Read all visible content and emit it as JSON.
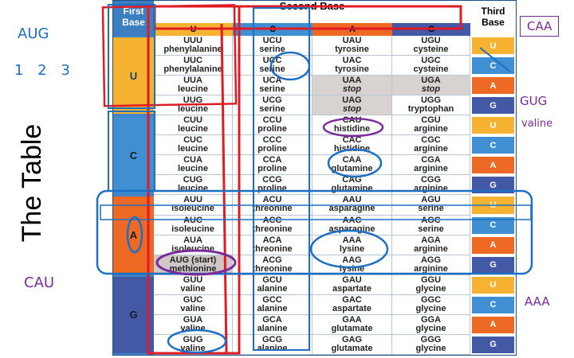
{
  "side_title": "The Table",
  "notes": {
    "top_left_codon": "AUG",
    "top_left_positions": "1 2 3",
    "bottom_left": "CAU",
    "right_top": "CAA",
    "right_mid_1": "GUG",
    "right_mid_2": "valine",
    "right_bottom": "AAA"
  },
  "headers": {
    "first": "First Base",
    "second": "Second Base",
    "third": "Third Base",
    "second_bases": [
      "U",
      "C",
      "A",
      "G"
    ]
  },
  "first_bases": [
    "U",
    "C",
    "A",
    "G"
  ],
  "third_bases": [
    "U",
    "C",
    "A",
    "G",
    "U",
    "C",
    "A",
    "G",
    "U",
    "C",
    "A",
    "G",
    "U",
    "C",
    "A",
    "G"
  ],
  "rows": [
    [
      [
        "UUU",
        "phenylalanine"
      ],
      [
        "UCU",
        "serine"
      ],
      [
        "UAU",
        "tyrosine"
      ],
      [
        "UGU",
        "cysteine"
      ]
    ],
    [
      [
        "UUC",
        "phenylalanine"
      ],
      [
        "UCC",
        "serine"
      ],
      [
        "UAC",
        "tyrosine"
      ],
      [
        "UGC",
        "cysteine"
      ]
    ],
    [
      [
        "UUA",
        "leucine"
      ],
      [
        "UCA",
        "serine"
      ],
      [
        "UAA",
        "stop"
      ],
      [
        "UGA",
        "stop"
      ]
    ],
    [
      [
        "UUG",
        "leucine"
      ],
      [
        "UCG",
        "serine"
      ],
      [
        "UAG",
        "stop"
      ],
      [
        "UGG",
        "tryptophan"
      ]
    ],
    [
      [
        "CUU",
        "leucine"
      ],
      [
        "CCU",
        "proline"
      ],
      [
        "CAU",
        "histidine"
      ],
      [
        "CGU",
        "arginine"
      ]
    ],
    [
      [
        "CUC",
        "leucine"
      ],
      [
        "CCC",
        "proline"
      ],
      [
        "CAC",
        "histidine"
      ],
      [
        "CGC",
        "arginine"
      ]
    ],
    [
      [
        "CUA",
        "leucine"
      ],
      [
        "CCA",
        "proline"
      ],
      [
        "CAA",
        "glutamine"
      ],
      [
        "CGA",
        "arginine"
      ]
    ],
    [
      [
        "CUG",
        "leucine"
      ],
      [
        "CCG",
        "proline"
      ],
      [
        "CAG",
        "glutamine"
      ],
      [
        "CGG",
        "arginine"
      ]
    ],
    [
      [
        "AUU",
        "isoleucine"
      ],
      [
        "ACU",
        "threonine"
      ],
      [
        "AAU",
        "asparagine"
      ],
      [
        "AGU",
        "serine"
      ]
    ],
    [
      [
        "AUC",
        "isoleucine"
      ],
      [
        "ACC",
        "threonine"
      ],
      [
        "AAC",
        "asparagine"
      ],
      [
        "AGC",
        "serine"
      ]
    ],
    [
      [
        "AUA",
        "isoleucine"
      ],
      [
        "ACA",
        "threonine"
      ],
      [
        "AAA",
        "lysine"
      ],
      [
        "AGA",
        "arginine"
      ]
    ],
    [
      [
        "AUG (start)",
        "methionine"
      ],
      [
        "ACG",
        "threonine"
      ],
      [
        "AAG",
        "lysine"
      ],
      [
        "AGG",
        "arginine"
      ]
    ],
    [
      [
        "GUU",
        "valine"
      ],
      [
        "GCU",
        "alanine"
      ],
      [
        "GAU",
        "aspartate"
      ],
      [
        "GGU",
        "glycine"
      ]
    ],
    [
      [
        "GUC",
        "valine"
      ],
      [
        "GCC",
        "alanine"
      ],
      [
        "GAC",
        "aspartate"
      ],
      [
        "GGC",
        "glycine"
      ]
    ],
    [
      [
        "GUA",
        "valine"
      ],
      [
        "GCA",
        "alanine"
      ],
      [
        "GAA",
        "glutamate"
      ],
      [
        "GGA",
        "glycine"
      ]
    ],
    [
      [
        "GUG",
        "valine"
      ],
      [
        "GCG",
        "alanine"
      ],
      [
        "GAG",
        "glutamate"
      ],
      [
        "GGG",
        "glycine"
      ]
    ]
  ],
  "colors": {
    "U": "#f7b231",
    "C": "#3f8fd2",
    "A": "#ee6a24",
    "G": "#4359a6",
    "stop_bg": "#d8d2d0",
    "ink_red": "#e01b24",
    "ink_blue": "#1d6fc4",
    "ink_purple": "#7b2b9c"
  }
}
